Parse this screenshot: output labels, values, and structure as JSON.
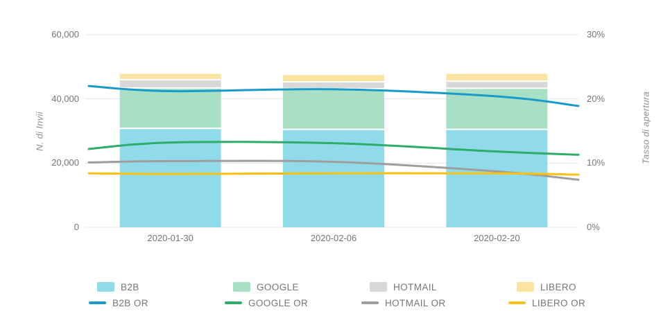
{
  "colors": {
    "background": "#FFFFFF",
    "grid": "#E3E8EF",
    "tick_text": "#757575",
    "axis_title_text": "#8E8E8E",
    "bar_separator": "#FFFFFF"
  },
  "chart_data": {
    "type": "combo: stacked vertical bars (left axis) + smooth lines (right axis)",
    "categories": [
      "2020-01-30",
      "2020-02-06",
      "2020-02-20"
    ],
    "bar_stack_order_bottom_to_top": [
      "B2B",
      "GOOGLE",
      "HOTMAIL",
      "LIBERO"
    ],
    "bar_series": [
      {
        "name": "B2B",
        "color": "#90DAEA",
        "values": [
          30800,
          30500,
          30500
        ]
      },
      {
        "name": "GOOGLE",
        "color": "#A9DFC4",
        "values": [
          12600,
          12700,
          12800
        ]
      },
      {
        "name": "HOTMAIL",
        "color": "#D8D8D8",
        "values": [
          2600,
          2100,
          2200
        ]
      },
      {
        "name": "LIBERO",
        "color": "#FBE3A0",
        "values": [
          1800,
          2100,
          2300
        ]
      }
    ],
    "line_series": [
      {
        "name": "B2B OR",
        "color": "#189BCB",
        "values_pct": [
          21.2,
          21.5,
          20.4
        ],
        "edge_left_pct": 22.0,
        "edge_right_pct": 18.9
      },
      {
        "name": "GOOGLE OR",
        "color": "#2EAC6B",
        "values_pct": [
          13.2,
          13.1,
          11.8
        ],
        "edge_left_pct": 12.2,
        "edge_right_pct": 11.3
      },
      {
        "name": "HOTMAIL OR",
        "color": "#9E9E9E",
        "values_pct": [
          10.3,
          10.2,
          8.7
        ],
        "edge_left_pct": 10.1,
        "edge_right_pct": 7.4
      },
      {
        "name": "LIBERO OR",
        "color": "#FDC211",
        "values_pct": [
          8.3,
          8.4,
          8.4
        ],
        "edge_left_pct": 8.4,
        "edge_right_pct": 8.2
      }
    ],
    "left_axis": {
      "label": "N. di Invii",
      "min": 0,
      "max": 60000,
      "ticks": [
        0,
        20000,
        40000,
        60000
      ],
      "tick_labels": [
        "0",
        "20,000",
        "40,000",
        "60,000"
      ]
    },
    "right_axis": {
      "label": "Tasso di apertura",
      "min": 0,
      "max": 30,
      "ticks": [
        0,
        10,
        20,
        30
      ],
      "tick_labels": [
        "0%",
        "10%",
        "20%",
        "30%"
      ]
    },
    "grid": true,
    "legend_position": "bottom"
  }
}
